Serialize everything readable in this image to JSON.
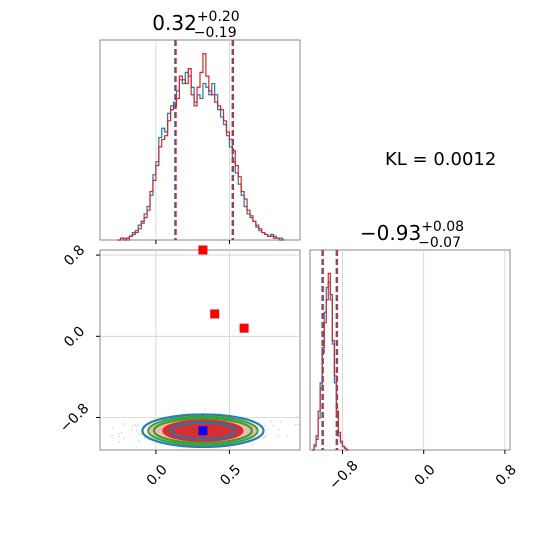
{
  "chart_data": [
    {
      "type": "histogram",
      "panel": "marginal-x",
      "title": {
        "value": "0.32",
        "plus": "+0.20",
        "minus": "−0.19"
      },
      "xlim": [
        -0.38,
        0.98
      ],
      "quantiles": [
        0.13,
        0.52
      ],
      "median": 0.32,
      "series": [
        {
          "color": "#1f77b4",
          "bins": [
            [
              -0.26,
              0
            ],
            [
              -0.24,
              0.01
            ],
            [
              -0.22,
              0.01
            ],
            [
              -0.2,
              0
            ],
            [
              -0.18,
              0.02
            ],
            [
              -0.16,
              0.04
            ],
            [
              -0.14,
              0.04
            ],
            [
              -0.12,
              0.08
            ],
            [
              -0.1,
              0.09
            ],
            [
              -0.08,
              0.14
            ],
            [
              -0.06,
              0.18
            ],
            [
              -0.04,
              0.24
            ],
            [
              -0.02,
              0.35
            ],
            [
              0.0,
              0.42
            ],
            [
              0.02,
              0.55
            ],
            [
              0.04,
              0.6
            ],
            [
              0.06,
              0.58
            ],
            [
              0.08,
              0.68
            ],
            [
              0.1,
              0.72
            ],
            [
              0.12,
              0.74
            ],
            [
              0.14,
              0.8
            ],
            [
              0.16,
              0.86
            ],
            [
              0.18,
              0.84
            ],
            [
              0.2,
              0.9
            ],
            [
              0.22,
              0.88
            ],
            [
              0.24,
              0.82
            ],
            [
              0.26,
              0.74
            ],
            [
              0.28,
              0.78
            ],
            [
              0.3,
              0.76
            ],
            [
              0.32,
              0.84
            ],
            [
              0.34,
              0.82
            ],
            [
              0.36,
              0.78
            ],
            [
              0.38,
              0.84
            ],
            [
              0.4,
              0.78
            ],
            [
              0.42,
              0.7
            ],
            [
              0.44,
              0.66
            ],
            [
              0.46,
              0.62
            ],
            [
              0.48,
              0.56
            ],
            [
              0.5,
              0.5
            ],
            [
              0.52,
              0.42
            ],
            [
              0.54,
              0.36
            ],
            [
              0.56,
              0.3
            ],
            [
              0.58,
              0.24
            ],
            [
              0.6,
              0.18
            ],
            [
              0.62,
              0.14
            ],
            [
              0.64,
              0.12
            ],
            [
              0.66,
              0.1
            ],
            [
              0.68,
              0.08
            ],
            [
              0.7,
              0.05
            ],
            [
              0.72,
              0.04
            ],
            [
              0.74,
              0.03
            ],
            [
              0.76,
              0.02
            ],
            [
              0.78,
              0.03
            ],
            [
              0.8,
              0.02
            ],
            [
              0.82,
              0.01
            ],
            [
              0.84,
              0.01
            ],
            [
              0.86,
              0
            ]
          ]
        },
        {
          "color": "#d62728",
          "bins": [
            [
              -0.26,
              0
            ],
            [
              -0.24,
              0.01
            ],
            [
              -0.22,
              0
            ],
            [
              -0.2,
              0.01
            ],
            [
              -0.18,
              0.02
            ],
            [
              -0.16,
              0.03
            ],
            [
              -0.14,
              0.05
            ],
            [
              -0.12,
              0.06
            ],
            [
              -0.1,
              0.1
            ],
            [
              -0.08,
              0.12
            ],
            [
              -0.06,
              0.16
            ],
            [
              -0.04,
              0.26
            ],
            [
              -0.02,
              0.32
            ],
            [
              0.0,
              0.4
            ],
            [
              0.02,
              0.5
            ],
            [
              0.04,
              0.54
            ],
            [
              0.06,
              0.56
            ],
            [
              0.08,
              0.64
            ],
            [
              0.1,
              0.7
            ],
            [
              0.12,
              0.72
            ],
            [
              0.14,
              0.76
            ],
            [
              0.16,
              0.88
            ],
            [
              0.18,
              0.86
            ],
            [
              0.2,
              0.84
            ],
            [
              0.22,
              0.92
            ],
            [
              0.24,
              0.78
            ],
            [
              0.26,
              0.72
            ],
            [
              0.28,
              0.82
            ],
            [
              0.3,
              0.9
            ],
            [
              0.32,
              1.0
            ],
            [
              0.34,
              0.88
            ],
            [
              0.36,
              0.8
            ],
            [
              0.38,
              0.78
            ],
            [
              0.4,
              0.74
            ],
            [
              0.42,
              0.72
            ],
            [
              0.44,
              0.7
            ],
            [
              0.46,
              0.64
            ],
            [
              0.48,
              0.58
            ],
            [
              0.5,
              0.54
            ],
            [
              0.52,
              0.48
            ],
            [
              0.54,
              0.4
            ],
            [
              0.56,
              0.34
            ],
            [
              0.58,
              0.26
            ],
            [
              0.6,
              0.22
            ],
            [
              0.62,
              0.16
            ],
            [
              0.64,
              0.13
            ],
            [
              0.66,
              0.1
            ],
            [
              0.68,
              0.07
            ],
            [
              0.7,
              0.06
            ],
            [
              0.72,
              0.04
            ],
            [
              0.74,
              0.03
            ],
            [
              0.76,
              0.02
            ],
            [
              0.78,
              0.02
            ],
            [
              0.8,
              0.01
            ],
            [
              0.82,
              0.01
            ],
            [
              0.84,
              0
            ]
          ]
        }
      ]
    },
    {
      "type": "histogram",
      "panel": "marginal-y",
      "title": {
        "value": "−0.93",
        "plus": "+0.08",
        "minus": "−0.07"
      },
      "xlim": [
        -1.12,
        0.85
      ],
      "xticks": [
        -0.8,
        0.0,
        0.8
      ],
      "xticklabels": [
        "−0.8",
        "0.0",
        "0.8"
      ],
      "quantiles": [
        -1.0,
        -0.86
      ],
      "median": -0.93,
      "series": [
        {
          "color": "#1f77b4",
          "bins": [
            [
              -1.1,
              0
            ],
            [
              -1.08,
              0.02
            ],
            [
              -1.06,
              0.06
            ],
            [
              -1.04,
              0.18
            ],
            [
              -1.02,
              0.38
            ],
            [
              -1.0,
              0.55
            ],
            [
              -0.98,
              0.78
            ],
            [
              -0.96,
              0.92
            ],
            [
              -0.94,
              0.95
            ],
            [
              -0.92,
              0.85
            ],
            [
              -0.9,
              0.6
            ],
            [
              -0.88,
              0.38
            ],
            [
              -0.86,
              0.2
            ],
            [
              -0.84,
              0.08
            ],
            [
              -0.82,
              0.04
            ],
            [
              -0.8,
              0.02
            ],
            [
              -0.78,
              0.01
            ],
            [
              -0.76,
              0
            ]
          ]
        },
        {
          "color": "#d62728",
          "bins": [
            [
              -1.1,
              0
            ],
            [
              -1.08,
              0.03
            ],
            [
              -1.06,
              0.08
            ],
            [
              -1.04,
              0.22
            ],
            [
              -1.02,
              0.35
            ],
            [
              -1.0,
              0.58
            ],
            [
              -0.98,
              0.72
            ],
            [
              -0.96,
              0.85
            ],
            [
              -0.94,
              1.0
            ],
            [
              -0.92,
              0.88
            ],
            [
              -0.9,
              0.62
            ],
            [
              -0.88,
              0.42
            ],
            [
              -0.86,
              0.22
            ],
            [
              -0.84,
              0.1
            ],
            [
              -0.82,
              0.05
            ],
            [
              -0.8,
              0.02
            ],
            [
              -0.78,
              0.01
            ],
            [
              -0.76,
              0
            ]
          ]
        }
      ]
    },
    {
      "type": "scatter",
      "panel": "joint",
      "xlim": [
        -0.38,
        0.98
      ],
      "ylim": [
        -1.12,
        0.85
      ],
      "xticks": [
        0.0,
        0.5
      ],
      "xticklabels": [
        "0.0",
        "0.5"
      ],
      "yticks": [
        -0.8,
        0.0,
        0.8
      ],
      "yticklabels": [
        "−0.8",
        "0.0",
        "0.8"
      ],
      "red_points": [
        [
          0.32,
          0.85
        ],
        [
          0.4,
          0.22
        ],
        [
          0.6,
          0.08
        ]
      ],
      "blue_point": [
        0.32,
        -0.93
      ],
      "contours": [
        {
          "color": "#1f77b4",
          "fill": "none",
          "cx": 0.32,
          "cy": -0.93,
          "rx": 0.84,
          "ry": 0.16
        },
        {
          "color": "#2ca02c",
          "fill": "#f0b8ae",
          "cx": 0.32,
          "cy": -0.93,
          "rx": 0.76,
          "ry": 0.14
        },
        {
          "color": "#2ca02c",
          "fill": "none",
          "cx": 0.32,
          "cy": -0.93,
          "rx": 0.68,
          "ry": 0.12
        },
        {
          "color": "#d62728",
          "fill": "#d62728",
          "cx": 0.32,
          "cy": -0.93,
          "rx": 0.55,
          "ry": 0.1
        },
        {
          "color": "#1f77b4",
          "fill": "none",
          "cx": 0.32,
          "cy": -0.93,
          "rx": 0.45,
          "ry": 0.08
        }
      ]
    }
  ],
  "annotation": {
    "kl_label": "KL = 0.0012"
  }
}
